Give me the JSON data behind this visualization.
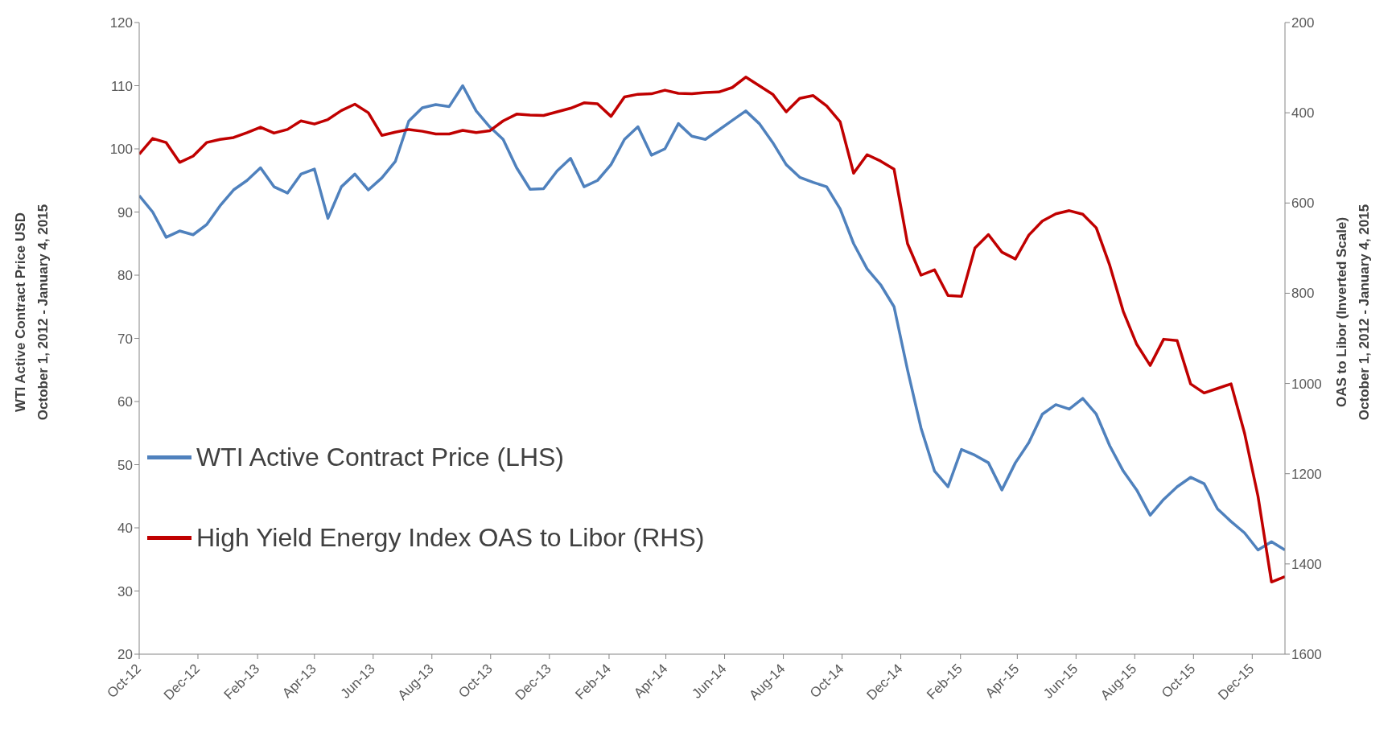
{
  "chart_data": {
    "type": "line",
    "ylabel": "WTI Active Contract Price USD\nOctober 1, 2012 - January 4, 2015",
    "y2label": "OAS to Libor (Inverted Scale)\nOctober 1, 2012 - January 4, 2015",
    "x": [
      "2012-10-01",
      "2012-10-15",
      "2012-10-29",
      "2012-11-12",
      "2012-11-26",
      "2012-12-10",
      "2012-12-24",
      "2013-01-07",
      "2013-01-21",
      "2013-02-04",
      "2013-02-18",
      "2013-03-04",
      "2013-03-18",
      "2013-04-01",
      "2013-04-15",
      "2013-04-29",
      "2013-05-13",
      "2013-05-27",
      "2013-06-10",
      "2013-06-24",
      "2013-07-08",
      "2013-07-22",
      "2013-08-05",
      "2013-08-19",
      "2013-09-02",
      "2013-09-16",
      "2013-09-30",
      "2013-10-14",
      "2013-10-28",
      "2013-11-11",
      "2013-11-25",
      "2013-12-09",
      "2013-12-23",
      "2014-01-06",
      "2014-01-20",
      "2014-02-03",
      "2014-02-17",
      "2014-03-03",
      "2014-03-17",
      "2014-03-31",
      "2014-04-14",
      "2014-04-28",
      "2014-05-12",
      "2014-05-26",
      "2014-06-09",
      "2014-06-23",
      "2014-07-07",
      "2014-07-21",
      "2014-08-04",
      "2014-08-18",
      "2014-09-01",
      "2014-09-15",
      "2014-09-29",
      "2014-10-13",
      "2014-10-27",
      "2014-11-10",
      "2014-11-24",
      "2014-12-08",
      "2014-12-22",
      "2015-01-05",
      "2015-01-19",
      "2015-02-02",
      "2015-02-16",
      "2015-03-02",
      "2015-03-16",
      "2015-03-30",
      "2015-04-13",
      "2015-04-27",
      "2015-05-11",
      "2015-05-25",
      "2015-06-08",
      "2015-06-22",
      "2015-07-06",
      "2015-07-20",
      "2015-08-03",
      "2015-08-17",
      "2015-08-31",
      "2015-09-14",
      "2015-09-28",
      "2015-10-12",
      "2015-10-26",
      "2015-11-09",
      "2015-11-23",
      "2015-12-07",
      "2015-12-21",
      "2016-01-04"
    ],
    "series": [
      {
        "name": "WTI Active Contract Price (LHS)",
        "color": "#4f81bd",
        "values": [
          92.6,
          90,
          86,
          87,
          86.4,
          88,
          91,
          93.5,
          95,
          97,
          94,
          93,
          96,
          96.8,
          89,
          94,
          96,
          93.5,
          95.4,
          98,
          104.4,
          106.5,
          107,
          106.7,
          110,
          106,
          103.5,
          101.5,
          97,
          93.6,
          93.7,
          96.5,
          98.5,
          94,
          95,
          97.5,
          101.5,
          103.5,
          99,
          100,
          104,
          102,
          101.5,
          103,
          104.5,
          106,
          104,
          101,
          97.5,
          95.5,
          94.7,
          94,
          90.5,
          85,
          81,
          78.5,
          75,
          65,
          55.8,
          49,
          46.5,
          52.4,
          51.5,
          50.3,
          46,
          50.3,
          53.5,
          58,
          59.5,
          58.8,
          60.5,
          58,
          53,
          49,
          46,
          42,
          44.5,
          46.5,
          48,
          47,
          43,
          41,
          39.2,
          36.5,
          37.8,
          36.5
        ]
      },
      {
        "name": "High Yield Energy Index OAS to Libor (RHS)",
        "color": "#c00000",
        "axis": "y2",
        "values": [
          492,
          457,
          466,
          510,
          496,
          466,
          459,
          455,
          444,
          432,
          445,
          437,
          418,
          425,
          415,
          395,
          381,
          400,
          450,
          443,
          437,
          441,
          447,
          447,
          439,
          444,
          440,
          418,
          403,
          405,
          406,
          398,
          390,
          378,
          380,
          408,
          365,
          359,
          358,
          350,
          357,
          358,
          355,
          354,
          344,
          321,
          340,
          359,
          398,
          368,
          362,
          385,
          420,
          534,
          493,
          507,
          525,
          690,
          760,
          748,
          805,
          807,
          700,
          670,
          709,
          724,
          671,
          640,
          624,
          617,
          625,
          655,
          738,
          840,
          913,
          960,
          902,
          905,
          1001,
          1021,
          1011,
          1001,
          1110,
          1250,
          1440,
          1428
        ]
      }
    ],
    "xlim": [
      "2012-10-01",
      "2016-01-04"
    ],
    "xticks": [
      {
        "value": "2012-10-01",
        "label": "Oct-12"
      },
      {
        "value": "2012-12-01",
        "label": "Dec-12"
      },
      {
        "value": "2013-02-01",
        "label": "Feb-13"
      },
      {
        "value": "2013-04-01",
        "label": "Apr-13"
      },
      {
        "value": "2013-06-01",
        "label": "Jun-13"
      },
      {
        "value": "2013-08-01",
        "label": "Aug-13"
      },
      {
        "value": "2013-10-01",
        "label": "Oct-13"
      },
      {
        "value": "2013-12-01",
        "label": "Dec-13"
      },
      {
        "value": "2014-02-01",
        "label": "Feb-14"
      },
      {
        "value": "2014-04-01",
        "label": "Apr-14"
      },
      {
        "value": "2014-06-01",
        "label": "Jun-14"
      },
      {
        "value": "2014-08-01",
        "label": "Aug-14"
      },
      {
        "value": "2014-10-01",
        "label": "Oct-14"
      },
      {
        "value": "2014-12-01",
        "label": "Dec-14"
      },
      {
        "value": "2015-02-01",
        "label": "Feb-15"
      },
      {
        "value": "2015-04-01",
        "label": "Apr-15"
      },
      {
        "value": "2015-06-01",
        "label": "Jun-15"
      },
      {
        "value": "2015-08-01",
        "label": "Aug-15"
      },
      {
        "value": "2015-10-01",
        "label": "Oct-15"
      },
      {
        "value": "2015-12-01",
        "label": "Dec-15"
      }
    ],
    "ylim": [
      20,
      120
    ],
    "yticks": [
      20,
      30,
      40,
      50,
      60,
      70,
      80,
      90,
      100,
      110,
      120
    ],
    "y2lim": [
      1600,
      200
    ],
    "y2ticks": [
      200,
      400,
      600,
      800,
      1000,
      1200,
      1400,
      1600
    ],
    "grid": false,
    "legend": "bottom left",
    "marker": "none",
    "line_style": "solid"
  }
}
